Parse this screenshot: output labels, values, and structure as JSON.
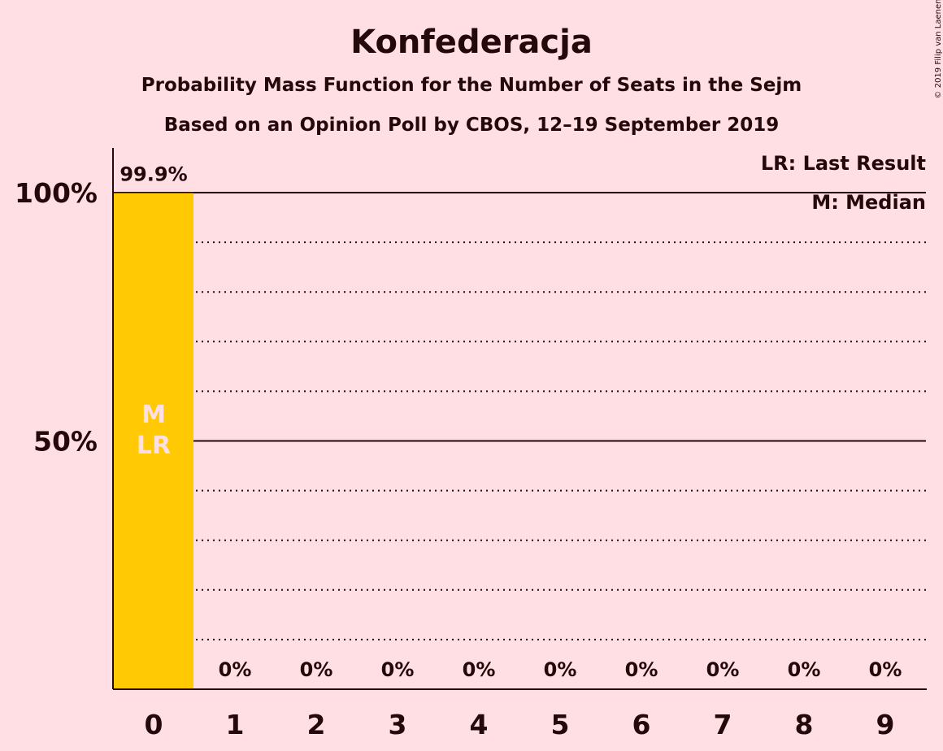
{
  "colors": {
    "background": "#ffdfe4",
    "bar": "#ffc904",
    "text": "#230909",
    "inbar_text": "#ffdfe4"
  },
  "copyright": "© 2019 Filip van Laenen",
  "chart_data": {
    "type": "bar",
    "title": "Konfederacja",
    "subtitle": "Probability Mass Function for the Number of Seats in the Sejm",
    "subtitle2": "Based on an Opinion Poll by CBOS, 12–19 September 2019",
    "categories": [
      "0",
      "1",
      "2",
      "3",
      "4",
      "5",
      "6",
      "7",
      "8",
      "9"
    ],
    "values": [
      99.9,
      0,
      0,
      0,
      0,
      0,
      0,
      0,
      0,
      0
    ],
    "value_labels": [
      "99.9%",
      "0%",
      "0%",
      "0%",
      "0%",
      "0%",
      "0%",
      "0%",
      "0%",
      "0%"
    ],
    "ylim": [
      0,
      110
    ],
    "yticks": [
      {
        "value": 50,
        "label": "50%"
      },
      {
        "value": 100,
        "label": "100%"
      }
    ],
    "grid_dotted_values": [
      10,
      20,
      30,
      40,
      60,
      70,
      80,
      90
    ],
    "legend": [
      "LR: Last Result",
      "M: Median"
    ],
    "markers": [
      {
        "index": 0,
        "lines": [
          "M",
          "LR"
        ]
      }
    ]
  }
}
